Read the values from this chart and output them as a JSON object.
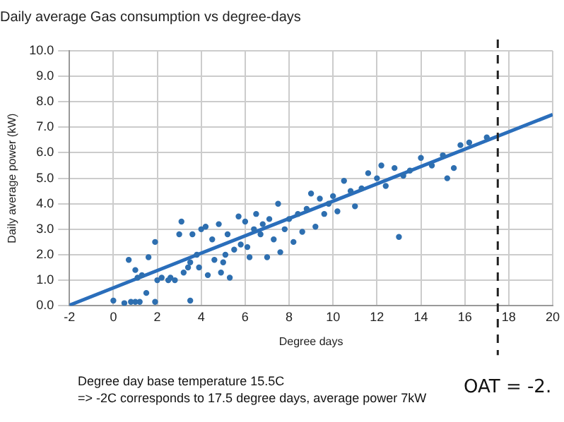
{
  "chart_data": {
    "type": "scatter",
    "title": "Daily average Gas consumption vs degree-days",
    "xlabel": "Degree days",
    "ylabel": "Daily average power (kW)",
    "xlim": [
      -2,
      20
    ],
    "xticks": [
      -2,
      0,
      2,
      4,
      6,
      8,
      10,
      12,
      14,
      16,
      18,
      20
    ],
    "ylim": [
      0,
      10
    ],
    "yticks": [
      {
        "value": 0,
        "label": "0.0"
      },
      {
        "value": 1,
        "label": "1.0"
      },
      {
        "value": 2,
        "label": "2.0"
      },
      {
        "value": 3,
        "label": "3.0"
      },
      {
        "value": 4,
        "label": "4.0"
      },
      {
        "value": 5,
        "label": "5.0"
      },
      {
        "value": 6,
        "label": "6.0"
      },
      {
        "value": 7,
        "label": "7.0"
      },
      {
        "value": 8,
        "label": "8.0"
      },
      {
        "value": 9,
        "label": "9.0"
      },
      {
        "value": 10,
        "label": "10.0"
      }
    ],
    "grid": true,
    "legend": false,
    "marker": "circle",
    "series": [
      {
        "color": "#2e6fb0",
        "x": [
          0,
          0.5,
          0.8,
          1,
          1.2,
          1.9,
          3.5,
          0.7,
          1,
          1.1,
          1.3,
          1.5,
          1.6,
          1.9,
          2,
          2.2,
          2.5,
          2.6,
          2.8,
          3,
          3.1,
          3.2,
          3.4,
          3.5,
          3.6,
          3.8,
          3.9,
          4,
          4.2,
          4.3,
          4.5,
          4.6,
          4.8,
          4.9,
          5,
          5.1,
          5.2,
          5.3,
          5.5,
          5.7,
          5.8,
          6,
          6.1,
          6.2,
          6.4,
          6.5,
          6.7,
          6.8,
          7,
          7.1,
          7.3,
          7.5,
          7.6,
          7.8,
          8,
          8.2,
          8.4,
          8.6,
          8.8,
          9,
          9.2,
          9.4,
          9.6,
          9.8,
          10,
          10.2,
          10.5,
          10.8,
          11,
          11.3,
          11.6,
          12,
          12.2,
          12.4,
          12.8,
          13,
          13.2,
          13.5,
          14,
          14.5,
          15,
          15.2,
          15.5,
          15.8,
          16.2,
          17
        ],
        "values": [
          0.2,
          0.1,
          0.15,
          0.15,
          0.15,
          0.15,
          0.2,
          1.8,
          1.4,
          1.1,
          1.2,
          0.5,
          1.9,
          2.5,
          1,
          1.1,
          1,
          1.1,
          1,
          2.8,
          3.3,
          1.3,
          1.5,
          1.7,
          2.8,
          2,
          1.5,
          3,
          3.1,
          1.2,
          2.6,
          1.8,
          3.2,
          1.3,
          1.7,
          2,
          2.8,
          1.1,
          2.2,
          3.5,
          2.4,
          3.3,
          2.3,
          1.9,
          3,
          3.6,
          2.8,
          3.2,
          1.9,
          3.4,
          2.6,
          4,
          2.1,
          3,
          3.4,
          2.5,
          3.6,
          2.9,
          3.8,
          4.4,
          3.1,
          4.2,
          3.6,
          4,
          4.3,
          3.7,
          4.9,
          4.5,
          3.9,
          4.6,
          5.2,
          5,
          5.5,
          4.7,
          5.4,
          2.7,
          5.1,
          5.3,
          5.8,
          5.5,
          5.9,
          5,
          5.4,
          6.3,
          6.4,
          6.6
        ]
      },
      {
        "type": "line",
        "color": "#2a6ebb",
        "marker": "none",
        "x": [
          -2,
          20
        ],
        "values": [
          0.02,
          7.5
        ]
      }
    ],
    "ref_lines": [
      {
        "axis": "x",
        "value": 17.5,
        "color": "#222222",
        "line_style": "dashed"
      }
    ],
    "annotations": [
      "Degree day base temperature 15.5C",
      "=> -2C corresponds to 17.5 degree days, average power 7kW",
      "OAT = -2."
    ]
  }
}
